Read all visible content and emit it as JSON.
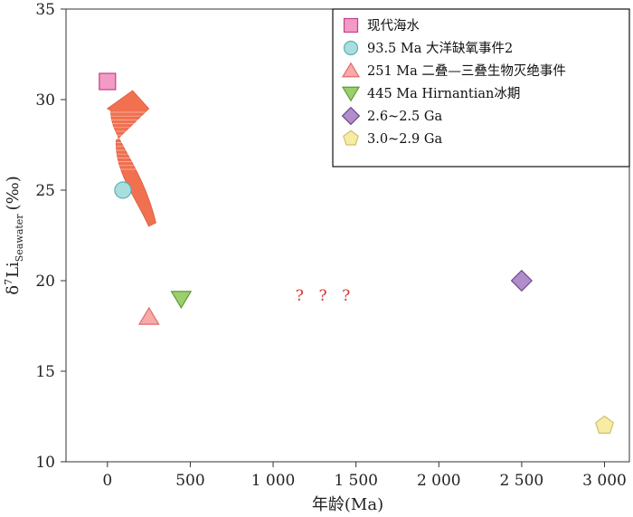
{
  "chart_data": {
    "type": "scatter",
    "xlabel": "年龄(Ma)",
    "ylabel": {
      "main": "δ",
      "sup": "7",
      "li": "Li",
      "sub": "Seawater",
      "unit": "(‰)"
    },
    "xlim": [
      -250,
      3150
    ],
    "ylim": [
      10,
      35
    ],
    "x_ticks": [
      {
        "value": 0,
        "label": "0"
      },
      {
        "value": 500,
        "label": "500"
      },
      {
        "value": 1000,
        "label": "1 000"
      },
      {
        "value": 1500,
        "label": "1 500"
      },
      {
        "value": 2000,
        "label": "2 000"
      },
      {
        "value": 2500,
        "label": "2 500"
      },
      {
        "value": 3000,
        "label": "3 000"
      }
    ],
    "y_ticks": [
      10,
      15,
      20,
      25,
      30,
      35
    ],
    "grid": false,
    "legend_position": "top-right",
    "series": [
      {
        "name": "现代海水",
        "marker": "square",
        "fill": "#f29bc6",
        "stroke": "#c4408a",
        "points": [
          {
            "x": 0,
            "y": 31
          }
        ]
      },
      {
        "name": "93.5 Ma  大洋缺氧事件2",
        "marker": "circle",
        "fill": "#a9dede",
        "stroke": "#5fb0b4",
        "points": [
          {
            "x": 93.5,
            "y": 25
          }
        ]
      },
      {
        "name": "251 Ma  二叠—三叠生物灭绝事件",
        "marker": "triangle-up",
        "fill": "#f7aaa8",
        "stroke": "#e06a6a",
        "points": [
          {
            "x": 251,
            "y": 18
          }
        ]
      },
      {
        "name": "445 Ma  Hirnantian冰期",
        "marker": "triangle-down",
        "fill": "#9bcf6e",
        "stroke": "#5e9a36",
        "points": [
          {
            "x": 445,
            "y": 19
          }
        ]
      },
      {
        "name": "2.6~2.5 Ga",
        "marker": "diamond",
        "fill": "#b18ec9",
        "stroke": "#6d4590",
        "points": [
          {
            "x": 2500,
            "y": 20
          }
        ]
      },
      {
        "name": "3.0~2.9 Ga",
        "marker": "pentagon",
        "fill": "#f7eca4",
        "stroke": "#d0c06a",
        "points": [
          {
            "x": 3000,
            "y": 12
          }
        ]
      }
    ],
    "annotations": {
      "arrow": {
        "color": "#f07050",
        "from": {
          "x": 260,
          "y": 23
        },
        "to": {
          "x": 130,
          "y": 30.5
        }
      },
      "question_marks": {
        "text": "?",
        "color": "#d9302a",
        "points": [
          {
            "x": 1160,
            "y": 19.2
          },
          {
            "x": 1300,
            "y": 19.2
          },
          {
            "x": 1440,
            "y": 19.2
          }
        ]
      }
    }
  }
}
